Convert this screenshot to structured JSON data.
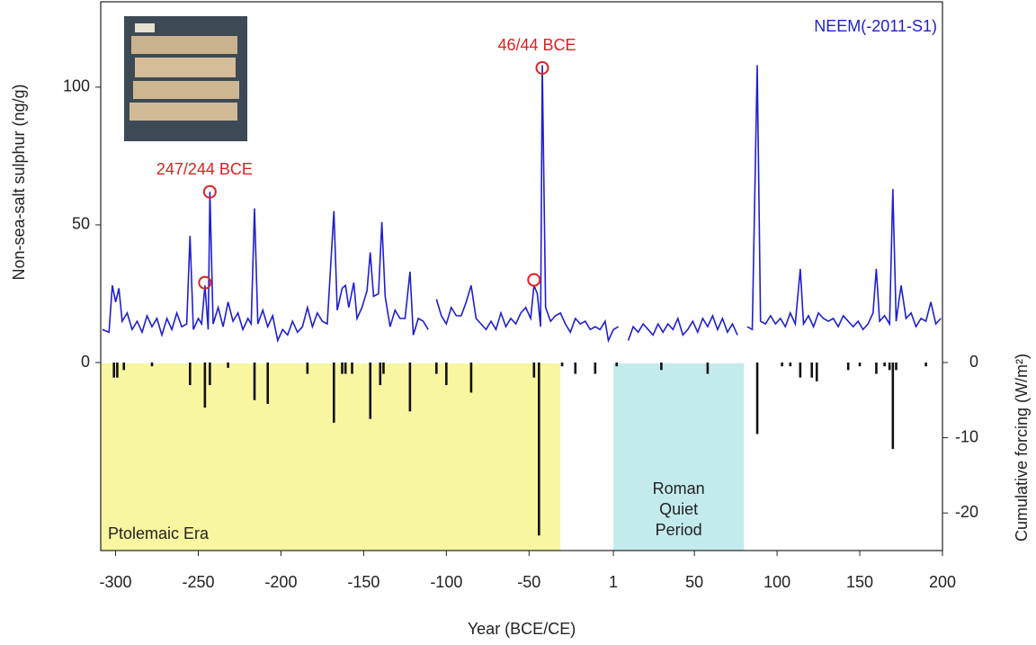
{
  "chart_data": [
    {
      "type": "line",
      "ylabel": "Non-sea-salt sulphur (ng/g)",
      "xlim": [
        -309,
        200
      ],
      "ylim": [
        0,
        131
      ],
      "yticks": [
        0,
        50,
        100
      ],
      "x": [
        -308,
        -304,
        -302,
        -300,
        -298,
        -296,
        -293,
        -290,
        -287,
        -284,
        -281,
        -278,
        -275,
        -272,
        -269,
        -266,
        -263,
        -260,
        -257,
        -255,
        -253,
        -250,
        -248,
        -246,
        -244,
        -243,
        -241,
        -238,
        -235,
        -232,
        -229,
        -226,
        -223,
        -220,
        -218,
        -216,
        -214,
        -211,
        -208,
        -205,
        -202,
        -199,
        -196,
        -193,
        -190,
        -187,
        -184,
        -181,
        -178,
        -175,
        -172,
        -168,
        -166,
        -163,
        -161,
        -159,
        -156,
        -154,
        -151,
        -148,
        -146,
        -144,
        -141,
        -139,
        -137,
        -134,
        -131,
        -128,
        -125,
        -122,
        -120,
        -117,
        -114,
        -111,
        -108,
        -106,
        -103,
        -100,
        -97,
        -94,
        -91,
        -88,
        -85,
        -82,
        -79,
        -76,
        -73,
        -70,
        -67,
        -64,
        -61,
        -58,
        -55,
        -52,
        -49,
        -47,
        -45,
        -43,
        -42,
        -40,
        -37,
        -34,
        -31,
        -28,
        -25,
        -22,
        -19,
        -16,
        -13,
        -10,
        -7,
        -4,
        -2,
        1,
        4,
        7,
        10,
        13,
        16,
        19,
        22,
        25,
        28,
        31,
        34,
        37,
        40,
        43,
        46,
        49,
        52,
        55,
        58,
        61,
        64,
        67,
        70,
        73,
        76,
        79,
        82,
        85,
        88,
        90,
        93,
        96,
        99,
        102,
        105,
        108,
        111,
        114,
        116,
        119,
        122,
        125,
        128,
        131,
        134,
        137,
        140,
        143,
        146,
        149,
        152,
        155,
        158,
        160,
        162,
        165,
        168,
        170,
        172,
        175,
        178,
        181,
        184,
        187,
        190,
        193,
        196,
        199
      ],
      "series": [
        {
          "name": "NEEM(-2011-S1)",
          "color": "#1f1fd1",
          "values": [
            12,
            11,
            28,
            22,
            27,
            15,
            18,
            12,
            15,
            11,
            17,
            13,
            16,
            10,
            16,
            12,
            18,
            13,
            14,
            46,
            12,
            16,
            14,
            28,
            12,
            62,
            14,
            20,
            13,
            22,
            15,
            18,
            12,
            16,
            14,
            56,
            14,
            19,
            13,
            17,
            8,
            12,
            10,
            15,
            11,
            13,
            20,
            13,
            18,
            15,
            14,
            55,
            19,
            27,
            28,
            20,
            29,
            16,
            20,
            26,
            40,
            24,
            25,
            51,
            24,
            13,
            19,
            16,
            16,
            33,
            10,
            16,
            15,
            12,
            null,
            23,
            17,
            14,
            20,
            17,
            17,
            22,
            28,
            16,
            14,
            12,
            15,
            12,
            18,
            13,
            16,
            14,
            18,
            20,
            16,
            28,
            25,
            13,
            108,
            20,
            15,
            17,
            18,
            14,
            11,
            16,
            14,
            15,
            12,
            13,
            12,
            15,
            8,
            12,
            13,
            null,
            8,
            13,
            11,
            14,
            12,
            10,
            14,
            11,
            14,
            12,
            16,
            10,
            12,
            15,
            11,
            16,
            13,
            17,
            12,
            16,
            11,
            14,
            10,
            null,
            13,
            12,
            108,
            15,
            14,
            17,
            14,
            16,
            13,
            18,
            14,
            34,
            14,
            17,
            13,
            18,
            16,
            15,
            16,
            13,
            17,
            15,
            13,
            15,
            12,
            14,
            18,
            34,
            15,
            17,
            14,
            63,
            15,
            28,
            16,
            18,
            13,
            16,
            15,
            22,
            14,
            16
          ]
        }
      ],
      "annotations": [
        {
          "label": "247/244 BCE",
          "x": -243,
          "y": 62
        },
        {
          "label": "46/44 BCE",
          "x": -42,
          "y": 107
        }
      ],
      "circles": [
        {
          "x": -243,
          "y": 62
        },
        {
          "x": -246,
          "y": 29
        },
        {
          "x": -42,
          "y": 107
        },
        {
          "x": -47,
          "y": 30
        }
      ]
    },
    {
      "type": "bar",
      "ylabel": "Cumulative forcing (W/m²)",
      "xlabel": "Year (BCE/CE)",
      "xlim": [
        -309,
        200
      ],
      "xticks": [
        -300,
        -250,
        -200,
        -150,
        -100,
        -50,
        1,
        50,
        100,
        150,
        200
      ],
      "ylim": [
        -25,
        0
      ],
      "yticks": [
        0,
        -10,
        -20
      ],
      "color": "#111111",
      "x": [
        -301,
        -299,
        -295,
        -278,
        -255,
        -246,
        -243,
        -232,
        -216,
        -208,
        -184,
        -168,
        -163,
        -161,
        -157,
        -146,
        -140,
        -138,
        -122,
        -106,
        -100,
        -85,
        -47,
        -44,
        -30,
        -22,
        -10,
        3,
        30,
        58,
        88,
        103,
        108,
        114,
        121,
        124,
        143,
        150,
        160,
        165,
        168,
        170,
        172,
        190
      ],
      "values": [
        -2,
        -2,
        -1,
        -0.5,
        -3,
        -6,
        -3,
        -0.7,
        -5,
        -5.5,
        -1.5,
        -8,
        -1.5,
        -1.5,
        -1.5,
        -7.5,
        -3,
        -1.5,
        -6.5,
        -1.5,
        -3,
        -4,
        -2,
        -23,
        -0.5,
        -1.5,
        -1.5,
        -0.5,
        -1,
        -1.5,
        -9.5,
        -0.5,
        -0.5,
        -2,
        -2,
        -2.5,
        -1,
        -0.5,
        -1.5,
        -0.5,
        -1,
        -11.5,
        -1,
        -0.5
      ],
      "periods": [
        {
          "label": "Ptolemaic Era",
          "start": -309,
          "end": -31,
          "color": "#f8f6a0"
        },
        {
          "label": "Roman Quiet Period",
          "start": 1,
          "end": 80,
          "color": "#c3ebec"
        }
      ]
    }
  ]
}
